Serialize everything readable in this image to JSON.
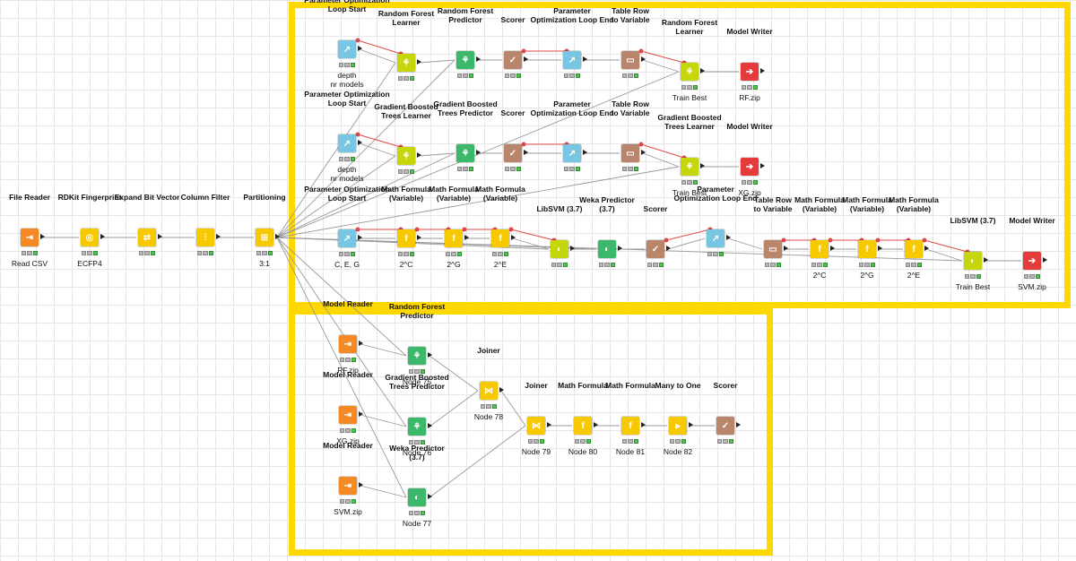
{
  "workflow": {
    "nodes": [
      {
        "id": "file_reader",
        "title": "File Reader",
        "sub": "Read CSV",
        "color": "#f58a24",
        "icon": "file-reader-icon",
        "glyph": "⇥"
      },
      {
        "id": "rdkit",
        "title": "RDKit Fingerprint",
        "sub": "ECFP4",
        "color": "#f7c900",
        "icon": "fingerprint-icon",
        "glyph": "◎"
      },
      {
        "id": "expand",
        "title": "Expand Bit Vector",
        "sub": "",
        "color": "#f7c900",
        "icon": "expand-icon",
        "glyph": "⇄"
      },
      {
        "id": "colfilter",
        "title": "Column Filter",
        "sub": "",
        "color": "#f7c900",
        "icon": "column-filter-icon",
        "glyph": "⫶"
      },
      {
        "id": "partition",
        "title": "Partitioning",
        "sub": "3:1",
        "color": "#f7c900",
        "icon": "partition-icon",
        "glyph": "⊞"
      },
      {
        "id": "pols1",
        "title": "Parameter Optimization\nLoop Start",
        "sub": "depth\nnr models",
        "color": "#79c6e3",
        "icon": "loop-start-icon",
        "glyph": "↗"
      },
      {
        "id": "rfl1",
        "title": "Random Forest\nLearner",
        "sub": "",
        "color": "#c5d60a",
        "icon": "tree-learner-icon",
        "glyph": "⚘"
      },
      {
        "id": "rfp1",
        "title": "Random Forest\nPredictor",
        "sub": "",
        "color": "#3cb86b",
        "icon": "tree-predictor-icon",
        "glyph": "⚘"
      },
      {
        "id": "sc1",
        "title": "Scorer",
        "sub": "",
        "color": "#b9866c",
        "icon": "scorer-icon",
        "glyph": "✓"
      },
      {
        "id": "pole1",
        "title": "Parameter\nOptimization Loop End",
        "sub": "",
        "color": "#79c6e3",
        "icon": "loop-end-icon",
        "glyph": "↗"
      },
      {
        "id": "trv1",
        "title": "Table Row\nto Variable",
        "sub": "",
        "color": "#b9866c",
        "icon": "table-row-variable-icon",
        "glyph": "▭"
      },
      {
        "id": "rfl_best",
        "title": "Random Forest\nLearner",
        "sub": "Train Best",
        "color": "#c5d60a",
        "icon": "tree-learner-icon",
        "glyph": "⚘"
      },
      {
        "id": "mw1",
        "title": "Model Writer",
        "sub": "RF.zip",
        "color": "#e63b3b",
        "icon": "model-writer-icon",
        "glyph": "➔"
      },
      {
        "id": "pols2",
        "title": "Parameter Optimization\nLoop Start",
        "sub": "depth\nnr models",
        "color": "#79c6e3",
        "icon": "loop-start-icon",
        "glyph": "↗"
      },
      {
        "id": "gbl1",
        "title": "Gradient Boosted\nTrees Learner",
        "sub": "",
        "color": "#c5d60a",
        "icon": "tree-learner-icon",
        "glyph": "⚘"
      },
      {
        "id": "gbp1",
        "title": "Gradient Boosted\nTrees Predictor",
        "sub": "",
        "color": "#3cb86b",
        "icon": "tree-predictor-icon",
        "glyph": "⚘"
      },
      {
        "id": "sc2",
        "title": "Scorer",
        "sub": "",
        "color": "#b9866c",
        "icon": "scorer-icon",
        "glyph": "✓"
      },
      {
        "id": "pole2",
        "title": "Parameter\nOptimization Loop End",
        "sub": "",
        "color": "#79c6e3",
        "icon": "loop-end-icon",
        "glyph": "↗"
      },
      {
        "id": "trv2",
        "title": "Table Row\nto Variable",
        "sub": "",
        "color": "#b9866c",
        "icon": "table-row-variable-icon",
        "glyph": "▭"
      },
      {
        "id": "gbl_best",
        "title": "Gradient Boosted\nTrees Learner",
        "sub": "Train Best",
        "color": "#c5d60a",
        "icon": "tree-learner-icon",
        "glyph": "⚘"
      },
      {
        "id": "mw2",
        "title": "Model Writer",
        "sub": "XG.zip",
        "color": "#e63b3b",
        "icon": "model-writer-icon",
        "glyph": "➔"
      },
      {
        "id": "pols3",
        "title": "Parameter Optimization\nLoop Start",
        "sub": "C, E, G",
        "color": "#79c6e3",
        "icon": "loop-start-icon",
        "glyph": "↗"
      },
      {
        "id": "mf1",
        "title": "Math Formula\n(Variable)",
        "sub": "2^C",
        "color": "#f7c900",
        "icon": "math-formula-icon",
        "glyph": "f"
      },
      {
        "id": "mf2",
        "title": "Math Formula\n(Variable)",
        "sub": "2^G",
        "color": "#f7c900",
        "icon": "math-formula-icon",
        "glyph": "f"
      },
      {
        "id": "mf3",
        "title": "Math Formula\n(Variable)",
        "sub": "2^E",
        "color": "#f7c900",
        "icon": "math-formula-icon",
        "glyph": "f"
      },
      {
        "id": "svm1",
        "title": "LibSVM (3.7)",
        "sub": "",
        "color": "#c5d60a",
        "icon": "svm-learner-icon",
        "glyph": "◐"
      },
      {
        "id": "weka1",
        "title": "Weka Predictor\n(3.7)",
        "sub": "",
        "color": "#3cb86b",
        "icon": "weka-predictor-icon",
        "glyph": "◐"
      },
      {
        "id": "sc3",
        "title": "Scorer",
        "sub": "",
        "color": "#b9866c",
        "icon": "scorer-icon",
        "glyph": "✓"
      },
      {
        "id": "pole3",
        "title": "Parameter\nOptimization Loop End",
        "sub": "",
        "color": "#79c6e3",
        "icon": "loop-end-icon",
        "glyph": "↗"
      },
      {
        "id": "trv3",
        "title": "Table Row\nto Variable",
        "sub": "",
        "color": "#b9866c",
        "icon": "table-row-variable-icon",
        "glyph": "▭"
      },
      {
        "id": "mf4",
        "title": "Math Formula\n(Variable)",
        "sub": "2^C",
        "color": "#f7c900",
        "icon": "math-formula-icon",
        "glyph": "f"
      },
      {
        "id": "mf5",
        "title": "Math Formula\n(Variable)",
        "sub": "2^G",
        "color": "#f7c900",
        "icon": "math-formula-icon",
        "glyph": "f"
      },
      {
        "id": "mf6",
        "title": "Math Formula\n(Variable)",
        "sub": "2^E",
        "color": "#f7c900",
        "icon": "math-formula-icon",
        "glyph": "f"
      },
      {
        "id": "svm_best",
        "title": "LibSVM (3.7)",
        "sub": "Train Best",
        "color": "#c5d60a",
        "icon": "svm-learner-icon",
        "glyph": "◐"
      },
      {
        "id": "mw3",
        "title": "Model Writer",
        "sub": "SVM.zip",
        "color": "#e63b3b",
        "icon": "model-writer-icon",
        "glyph": "➔"
      },
      {
        "id": "mr1",
        "title": "Model Reader",
        "sub": "RF.zip",
        "color": "#f58a24",
        "icon": "model-reader-icon",
        "glyph": "⇥"
      },
      {
        "id": "rfp2",
        "title": "Random Forest\nPredictor",
        "sub": "Node 75",
        "color": "#3cb86b",
        "icon": "tree-predictor-icon",
        "glyph": "⚘"
      },
      {
        "id": "mr2",
        "title": "Model Reader",
        "sub": "XG.zip",
        "color": "#f58a24",
        "icon": "model-reader-icon",
        "glyph": "⇥"
      },
      {
        "id": "gbp2",
        "title": "Gradient Boosted\nTrees Predictor",
        "sub": "Node 76",
        "color": "#3cb86b",
        "icon": "tree-predictor-icon",
        "glyph": "⚘"
      },
      {
        "id": "mr3",
        "title": "Model Reader",
        "sub": "SVM.zip",
        "color": "#f58a24",
        "icon": "model-reader-icon",
        "glyph": "⇥"
      },
      {
        "id": "weka2",
        "title": "Weka Predictor\n(3.7)",
        "sub": "Node 77",
        "color": "#3cb86b",
        "icon": "weka-predictor-icon",
        "glyph": "◐"
      },
      {
        "id": "join1",
        "title": "Joiner",
        "sub": "Node 78",
        "color": "#f7c900",
        "icon": "joiner-icon",
        "glyph": "⋈"
      },
      {
        "id": "join2",
        "title": "Joiner",
        "sub": "Node 79",
        "color": "#f7c900",
        "icon": "joiner-icon",
        "glyph": "⋈"
      },
      {
        "id": "mf7",
        "title": "Math Formula",
        "sub": "Node 80",
        "color": "#f7c900",
        "icon": "math-formula-icon",
        "glyph": "f"
      },
      {
        "id": "mf8",
        "title": "Math Formula",
        "sub": "Node 81",
        "color": "#f7c900",
        "icon": "math-formula-icon",
        "glyph": "f"
      },
      {
        "id": "m2o",
        "title": "Many to One",
        "sub": "Node 82",
        "color": "#f7c900",
        "icon": "many-to-one-icon",
        "glyph": "⫸"
      },
      {
        "id": "sc4",
        "title": "Scorer",
        "sub": "",
        "color": "#b9866c",
        "icon": "scorer-icon",
        "glyph": "✓"
      }
    ],
    "connections": [
      [
        "file_reader",
        "rdkit"
      ],
      [
        "rdkit",
        "expand"
      ],
      [
        "expand",
        "colfilter"
      ],
      [
        "colfilter",
        "partition"
      ],
      [
        "pols1",
        "rfl1"
      ],
      [
        "partition",
        "rfl1"
      ],
      [
        "rfl1",
        "rfp1"
      ],
      [
        "partition",
        "rfp1"
      ],
      [
        "rfp1",
        "sc1"
      ],
      [
        "sc1",
        "pole1"
      ],
      [
        "pole1",
        "trv1"
      ],
      [
        "trv1",
        "rfl_best"
      ],
      [
        "partition",
        "rfl_best"
      ],
      [
        "rfl_best",
        "mw1"
      ],
      [
        "pols2",
        "gbl1"
      ],
      [
        "partition",
        "gbl1"
      ],
      [
        "gbl1",
        "gbp1"
      ],
      [
        "partition",
        "gbp1"
      ],
      [
        "gbp1",
        "sc2"
      ],
      [
        "sc2",
        "pole2"
      ],
      [
        "pole2",
        "trv2"
      ],
      [
        "trv2",
        "gbl_best"
      ],
      [
        "partition",
        "gbl_best"
      ],
      [
        "gbl_best",
        "mw2"
      ],
      [
        "pols3",
        "mf1"
      ],
      [
        "mf1",
        "mf2"
      ],
      [
        "mf2",
        "mf3"
      ],
      [
        "mf3",
        "svm1"
      ],
      [
        "partition",
        "svm1"
      ],
      [
        "svm1",
        "weka1"
      ],
      [
        "partition",
        "weka1"
      ],
      [
        "weka1",
        "sc3"
      ],
      [
        "sc3",
        "pole3"
      ],
      [
        "pole3",
        "trv3"
      ],
      [
        "trv3",
        "mf4"
      ],
      [
        "mf4",
        "mf5"
      ],
      [
        "mf5",
        "mf6"
      ],
      [
        "mf6",
        "svm_best"
      ],
      [
        "partition",
        "svm_best"
      ],
      [
        "svm_best",
        "mw3"
      ],
      [
        "mr1",
        "rfp2"
      ],
      [
        "partition",
        "rfp2"
      ],
      [
        "mr2",
        "gbp2"
      ],
      [
        "partition",
        "gbp2"
      ],
      [
        "mr3",
        "weka2"
      ],
      [
        "partition",
        "weka2"
      ],
      [
        "rfp2",
        "join1"
      ],
      [
        "gbp2",
        "join1"
      ],
      [
        "join1",
        "join2"
      ],
      [
        "weka2",
        "join2"
      ],
      [
        "join2",
        "mf7"
      ],
      [
        "mf7",
        "mf8"
      ],
      [
        "mf8",
        "m2o"
      ],
      [
        "m2o",
        "sc4"
      ]
    ],
    "variable_connections": [
      [
        "pols1",
        "rfl1"
      ],
      [
        "sc1",
        "pole1"
      ],
      [
        "trv1",
        "rfl_best"
      ],
      [
        "pols2",
        "gbl1"
      ],
      [
        "sc2",
        "pole2"
      ],
      [
        "trv2",
        "gbl_best"
      ],
      [
        "pols3",
        "mf1"
      ],
      [
        "mf1",
        "mf2"
      ],
      [
        "mf2",
        "mf3"
      ],
      [
        "mf3",
        "svm1"
      ],
      [
        "sc3",
        "pole3"
      ],
      [
        "trv3",
        "mf4"
      ],
      [
        "mf4",
        "mf5"
      ],
      [
        "mf5",
        "mf6"
      ],
      [
        "mf6",
        "svm_best"
      ]
    ],
    "colors": {
      "annotation_border": "#ffd800",
      "data_wire": "#9a9a9a",
      "variable_wire": "#e04848"
    }
  }
}
